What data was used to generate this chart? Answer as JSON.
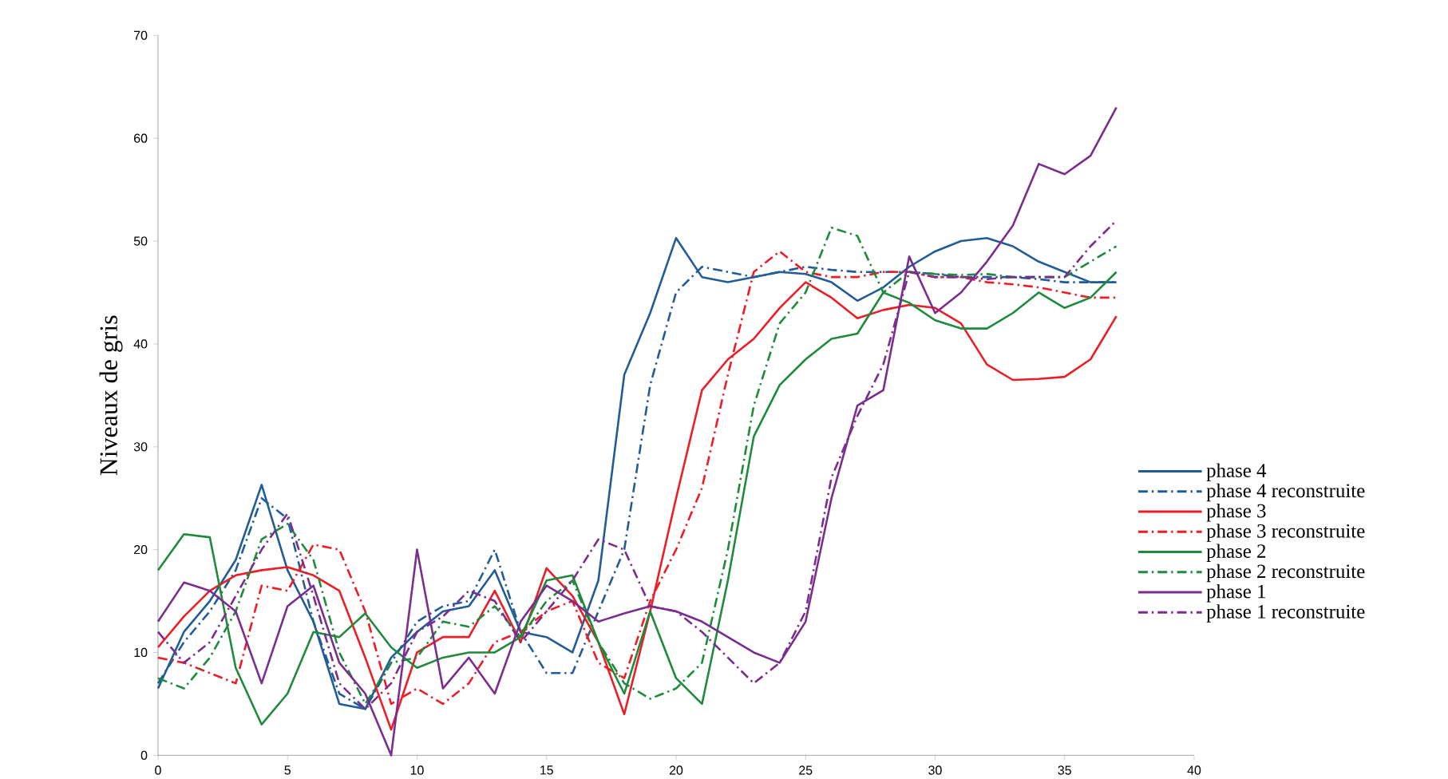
{
  "chart_data": {
    "type": "line",
    "ylabel": "Niveaux de gris",
    "x": [
      0,
      1,
      2,
      3,
      4,
      5,
      6,
      7,
      8,
      9,
      10,
      11,
      12,
      13,
      14,
      15,
      16,
      17,
      18,
      19,
      20,
      21,
      22,
      23,
      24,
      25,
      26,
      27,
      28,
      29,
      30,
      31,
      32,
      33,
      34,
      35,
      36,
      37
    ],
    "series": [
      {
        "name": "phase 4",
        "color": "#215c98",
        "line_style": "solid",
        "values": [
          6.5,
          12,
          15,
          19,
          26.3,
          18,
          13,
          5,
          4.5,
          9.5,
          12,
          14,
          14.5,
          18,
          12,
          11.5,
          10,
          17,
          37,
          43,
          50.3,
          46.5,
          46,
          46.5,
          47,
          46.8,
          46,
          44.2,
          45.5,
          47.5,
          49,
          50,
          50.3,
          49.5,
          48,
          47,
          46,
          46
        ]
      },
      {
        "name": "phase 4 reconstruite",
        "color": "#215c98",
        "line_style": "dashdotted",
        "values": [
          7,
          11,
          14,
          18,
          25,
          23,
          13,
          6,
          4.5,
          9,
          13,
          14.5,
          15,
          20,
          12,
          8,
          8,
          14,
          20,
          36,
          45,
          47.5,
          47,
          46.5,
          47,
          47.5,
          47.2,
          47,
          47,
          47,
          46.8,
          46.5,
          46.5,
          46.5,
          46.3,
          46,
          46,
          46
        ]
      },
      {
        "name": "phase 3",
        "color": "#ee1c25",
        "line_style": "solid",
        "values": [
          10.5,
          13.5,
          16,
          17.5,
          18,
          18.3,
          17.5,
          16,
          9.5,
          2.5,
          10,
          11.5,
          11.5,
          16,
          11,
          18.2,
          15.5,
          11,
          4,
          14,
          25,
          35.5,
          38.5,
          40.5,
          43.5,
          46,
          44.5,
          42.5,
          43.3,
          43.8,
          43.5,
          42,
          38,
          36.5,
          36.6,
          36.8,
          38.5,
          42.7
        ]
      },
      {
        "name": "phase 3 reconstruite",
        "color": "#ee1c25",
        "line_style": "dashdotted",
        "values": [
          9.5,
          9,
          8,
          7,
          16.5,
          16,
          20.5,
          20,
          14,
          5,
          6.5,
          5,
          7,
          11,
          12,
          14,
          15,
          9,
          7.5,
          15,
          20,
          26,
          37,
          47,
          49,
          47,
          46.5,
          46.5,
          47,
          47,
          46.5,
          46.5,
          46,
          45.8,
          45.5,
          45,
          44.5,
          44.5
        ]
      },
      {
        "name": "phase 2",
        "color": "#1e8a3c",
        "line_style": "solid",
        "values": [
          18,
          21.5,
          21.2,
          8.5,
          3,
          6,
          12,
          11.5,
          13.8,
          10.5,
          8.5,
          9.5,
          10,
          10,
          11.5,
          17,
          17.5,
          11,
          6,
          14,
          7.5,
          5,
          17,
          31,
          36,
          38.5,
          40.5,
          41,
          45,
          44,
          42.3,
          41.5,
          41.5,
          43,
          45,
          43.5,
          44.5,
          47
        ]
      },
      {
        "name": "phase 2 reconstruite",
        "color": "#1e8a3c",
        "line_style": "dashdotted",
        "values": [
          7.5,
          6.5,
          9.5,
          14,
          21,
          22.5,
          19,
          10,
          5,
          9,
          9.5,
          13,
          12.5,
          14.5,
          11.5,
          15,
          17,
          11,
          7,
          5.5,
          6.5,
          9,
          20,
          34,
          42,
          45,
          51.3,
          50.5,
          45,
          47,
          46.8,
          46.7,
          46.8,
          46.5,
          46.5,
          46.5,
          48,
          49.5
        ]
      },
      {
        "name": "phase 1",
        "color": "#7b2d8e",
        "line_style": "solid",
        "values": [
          13,
          16.8,
          16,
          14,
          7,
          14.5,
          16.5,
          9,
          6,
          0,
          20,
          6.5,
          9.5,
          6,
          13,
          16.5,
          15,
          13,
          13.8,
          14.5,
          14,
          13,
          11.5,
          10,
          9,
          13,
          25,
          34,
          35.5,
          48.5,
          43,
          45,
          48,
          51.5,
          57.5,
          56.5,
          58.3,
          63
        ]
      },
      {
        "name": "phase 1 reconstruite",
        "color": "#7b2d8e",
        "line_style": "dashdotted",
        "values": [
          12,
          9,
          11,
          15.5,
          20,
          23.5,
          15.5,
          7,
          4.5,
          7,
          12,
          13.5,
          16,
          15,
          11,
          14,
          17,
          21,
          20,
          14.5,
          14,
          12,
          9.5,
          7,
          9,
          14,
          27,
          33,
          38,
          47,
          46.5,
          46.5,
          46.3,
          46.5,
          46.5,
          46.5,
          49.5,
          52
        ]
      }
    ],
    "xlim": [
      0,
      40
    ],
    "ylim": [
      0,
      70
    ],
    "xticks": [
      0,
      5,
      10,
      15,
      20,
      25,
      30,
      35,
      40
    ],
    "yticks": [
      0,
      10,
      20,
      30,
      40,
      50,
      60,
      70
    ],
    "grid": false,
    "legend": "right",
    "marker": "none"
  }
}
